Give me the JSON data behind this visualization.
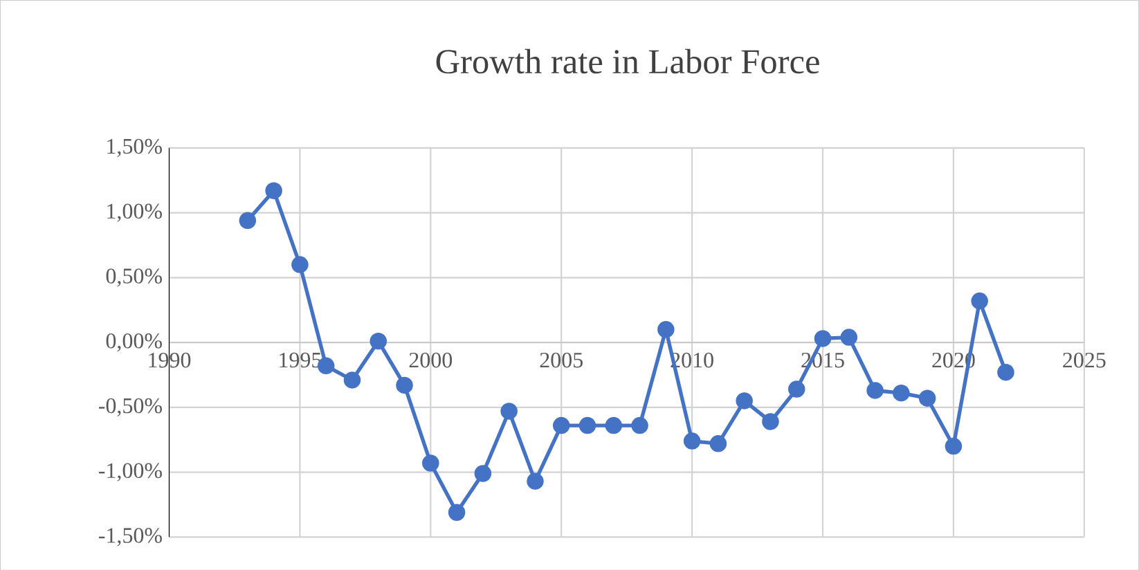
{
  "chart_data": {
    "type": "line",
    "title": "Growth rate in Labor Force",
    "x": [
      1993,
      1994,
      1995,
      1996,
      1997,
      1998,
      1999,
      2000,
      2001,
      2002,
      2003,
      2004,
      2005,
      2006,
      2007,
      2008,
      2009,
      2010,
      2011,
      2012,
      2013,
      2014,
      2015,
      2016,
      2017,
      2018,
      2019,
      2020,
      2021,
      2022
    ],
    "series": [
      {
        "color": "#4472c4",
        "values": [
          0.94,
          1.17,
          0.6,
          -0.18,
          -0.29,
          0.01,
          -0.33,
          -0.93,
          -1.31,
          -1.01,
          -0.53,
          -1.07,
          -0.64,
          -0.64,
          -0.64,
          -0.64,
          0.1,
          -0.76,
          -0.78,
          -0.45,
          -0.61,
          -0.36,
          0.03,
          0.04,
          -0.37,
          -0.39,
          -0.43,
          -0.8,
          0.32,
          -0.23
        ]
      }
    ],
    "xlim": [
      1990,
      2025
    ],
    "xticks": [
      1990,
      1995,
      2000,
      2005,
      2010,
      2015,
      2020,
      2025
    ],
    "ylim": [
      -1.5,
      1.5
    ],
    "yticks": [
      {
        "value": 1.5,
        "label": "1,50%"
      },
      {
        "value": 1.0,
        "label": "1,00%"
      },
      {
        "value": 0.5,
        "label": "0,50%"
      },
      {
        "value": 0.0,
        "label": "0,00%"
      },
      {
        "value": -0.5,
        "label": "-0,50%"
      },
      {
        "value": -1.0,
        "label": "-1,00%"
      },
      {
        "value": -1.5,
        "label": "-1,50%"
      }
    ],
    "grid": true,
    "marker": "circle",
    "line_style": "solid"
  }
}
